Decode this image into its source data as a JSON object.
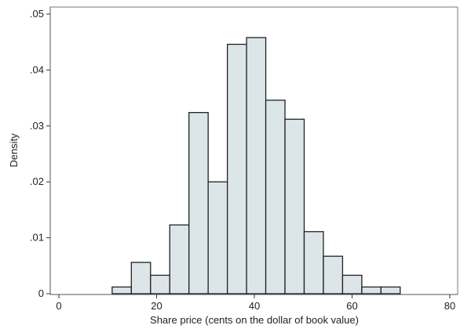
{
  "chart_data": {
    "type": "bar",
    "subtype": "histogram",
    "title": "",
    "xlabel": "Share price (cents on the dollar of book value)",
    "ylabel": "Density",
    "xlim": [
      0,
      80
    ],
    "ylim": [
      0,
      0.05
    ],
    "x_ticks": [
      0,
      20,
      40,
      60,
      80
    ],
    "x_tick_labels": [
      "0",
      "20",
      "40",
      "60",
      "80"
    ],
    "y_ticks": [
      0,
      0.01,
      0.02,
      0.03,
      0.04,
      0.05
    ],
    "y_tick_labels": [
      "0",
      ".01",
      ".02",
      ".03",
      ".04",
      ".05"
    ],
    "grid": false,
    "bin_start": 10.9,
    "bin_width": 3.93,
    "values": [
      0.0012,
      0.0056,
      0.0033,
      0.0123,
      0.0324,
      0.02,
      0.0446,
      0.0458,
      0.0346,
      0.0312,
      0.0111,
      0.0067,
      0.0033,
      0.0012,
      0.0012
    ],
    "colors": {
      "bar_fill": "#dce5e8",
      "bar_stroke": "#222222"
    }
  }
}
